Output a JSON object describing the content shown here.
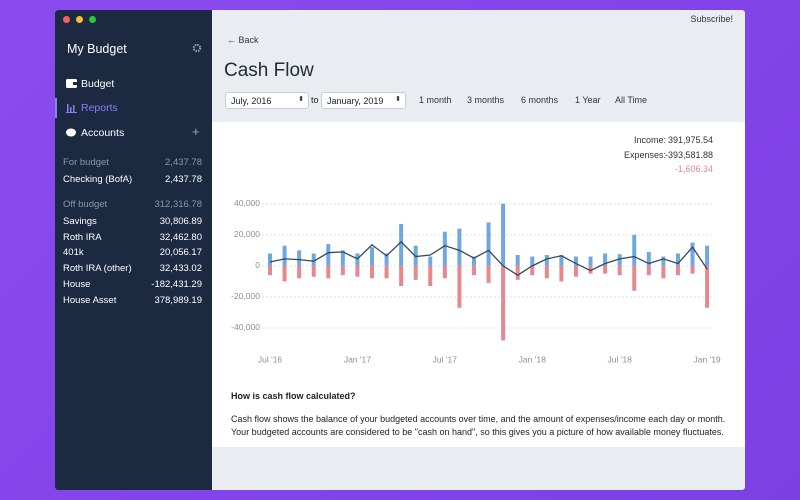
{
  "window": {
    "subscribe": "Subscribe!"
  },
  "sidebar": {
    "title": "My Budget",
    "nav": [
      "Budget",
      "Reports",
      "Accounts"
    ],
    "for_budget": {
      "label": "For budget",
      "total": "2,437.78",
      "accounts": [
        [
          "Checking (BofA)",
          "2,437.78"
        ]
      ]
    },
    "off_budget": {
      "label": "Off budget",
      "total": "312,316.78",
      "accounts": [
        [
          "Savings",
          "30,806.89"
        ],
        [
          "Roth IRA",
          "32,462.80"
        ],
        [
          "401k",
          "20,056.17"
        ],
        [
          "Roth IRA (other)",
          "32,433.02"
        ],
        [
          "House",
          "-182,431.29"
        ],
        [
          "House Asset",
          "378,989.19"
        ]
      ]
    }
  },
  "header": {
    "back": "← Back",
    "title": "Cash Flow",
    "from": "July, 2016",
    "to_word": "to",
    "to": "January, 2019",
    "ranges": [
      "1 month",
      "3 months",
      "6 months",
      "1 Year",
      "All Time"
    ]
  },
  "summary": {
    "income_label": "Income:",
    "income": "391,975.54",
    "expenses_label": "Expenses:",
    "expenses": "-393,581.88",
    "net": "-1,606.34"
  },
  "chart_data": {
    "type": "bar",
    "categories": [
      "Jul '16",
      null,
      null,
      null,
      null,
      null,
      "Jan '17",
      null,
      null,
      null,
      null,
      null,
      "Jul '17",
      null,
      null,
      null,
      null,
      null,
      "Jan '18",
      null,
      null,
      null,
      null,
      null,
      "Jul '18",
      null,
      null,
      null,
      null,
      null,
      "Jan '19"
    ],
    "series": [
      {
        "color": "#6fa8dc",
        "values": [
          8000,
          13000,
          10000,
          8000,
          14000,
          10000,
          8000,
          12000,
          8000,
          27000,
          13000,
          6000,
          22000,
          24000,
          6000,
          28000,
          40000,
          7000,
          6000,
          7000,
          7000,
          6000,
          6000,
          8000,
          7500,
          20000,
          9000,
          6000,
          8000,
          15000,
          13000
        ]
      },
      {
        "color": "#e5898e",
        "values": [
          -6000,
          -10000,
          -8000,
          -7000,
          -8000,
          -6000,
          -7000,
          -8000,
          -8000,
          -13000,
          -9000,
          -13000,
          -8000,
          -27000,
          -6000,
          -11000,
          -48000,
          -9000,
          -6000,
          -8000,
          -10000,
          -7000,
          -5000,
          -5000,
          -6000,
          -16000,
          -6000,
          -8000,
          -6000,
          -5000,
          -27000
        ]
      },
      {
        "type": "line",
        "color": "#34495e",
        "values": [
          2500,
          4500,
          4000,
          3000,
          8500,
          9000,
          4500,
          13500,
          6500,
          15500,
          6000,
          7000,
          13000,
          10000,
          5000,
          10000,
          0,
          -6000,
          0,
          4500,
          6500,
          1500,
          -3000,
          1500,
          4500,
          6000,
          1500,
          4500,
          1500,
          12000,
          -2000
        ]
      }
    ],
    "ylim": [
      -50000,
      45000
    ],
    "yticks": [
      {
        "value": 40000,
        "label": "40,000"
      },
      {
        "value": 20000,
        "label": "20,000"
      },
      0,
      {
        "value": -20000,
        "label": "-20,000"
      },
      {
        "value": -40000,
        "label": "-40,000"
      }
    ],
    "grid": true
  },
  "explanation": {
    "title": "How is cash flow calculated?",
    "body": "Cash flow shows the balance of your budgeted accounts over time, and the amount of expenses/income each day or month. Your budgeted accounts are considered to be \"cash on hand\", so this gives you a picture of how available money fluctuates."
  }
}
